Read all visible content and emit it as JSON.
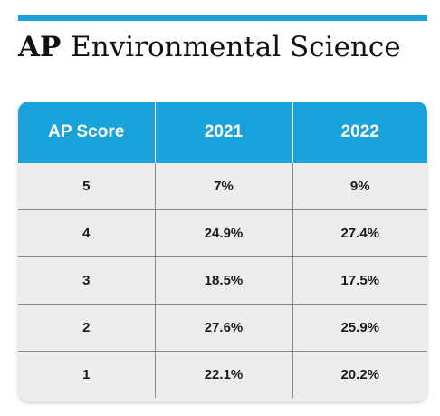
{
  "title": {
    "bold_part": "AP",
    "regular_part": "Environmental Science"
  },
  "colors": {
    "accent": "#1aa3db",
    "table_background": "#ededed",
    "header_text": "#ffffff"
  },
  "chart_data": {
    "type": "table",
    "title": "AP Environmental Science",
    "columns": [
      "AP Score",
      "2021",
      "2022"
    ],
    "rows": [
      [
        "5",
        "7%",
        "9%"
      ],
      [
        "4",
        "24.9%",
        "27.4%"
      ],
      [
        "3",
        "18.5%",
        "17.5%"
      ],
      [
        "2",
        "27.6%",
        "25.9%"
      ],
      [
        "1",
        "22.1%",
        "20.2%"
      ]
    ]
  }
}
